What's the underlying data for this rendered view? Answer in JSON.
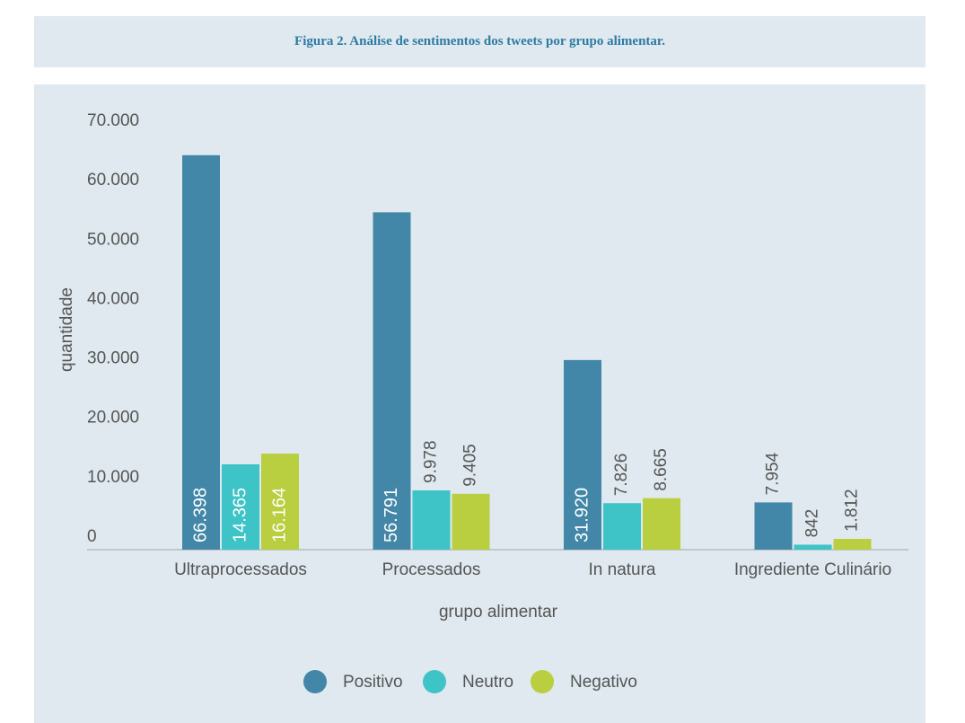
{
  "chart_data": {
    "type": "bar",
    "title": "Figura 2. Análise de sentimentos dos tweets por grupo alimentar.",
    "x_label": "grupo alimentar",
    "y_label": "quantidade",
    "categories": [
      "Ultraprocessados",
      "Processados",
      "In natura",
      "Ingrediente Culinário"
    ],
    "series": [
      {
        "name": "Positivo",
        "color": "#4287a8",
        "values": [
          66398,
          56791,
          31920,
          7954
        ],
        "value_labels": [
          "66.398",
          "56.791",
          "31.920",
          "7.954"
        ]
      },
      {
        "name": "Neutro",
        "color": "#3ec4c7",
        "values": [
          14365,
          9978,
          7826,
          842
        ],
        "value_labels": [
          "14.365",
          "9.978",
          "7.826",
          "842"
        ]
      },
      {
        "name": "Negativo",
        "color": "#b9cf3f",
        "values": [
          16164,
          9405,
          8665,
          1812
        ],
        "value_labels": [
          "16.164",
          "9.405",
          "8.665",
          "1.812"
        ]
      }
    ],
    "ylim": [
      0,
      70000
    ],
    "yticks": [
      0,
      {
        "value": 10000,
        "label": "10.000"
      },
      {
        "value": 20000,
        "label": "20.000"
      },
      {
        "value": 30000,
        "label": "30.000"
      },
      {
        "value": 40000,
        "label": "40.000"
      },
      {
        "value": 50000,
        "label": "50.000"
      },
      {
        "value": 60000,
        "label": "60.000"
      },
      {
        "value": 70000,
        "label": "70.000"
      }
    ],
    "legend": "bottom"
  }
}
